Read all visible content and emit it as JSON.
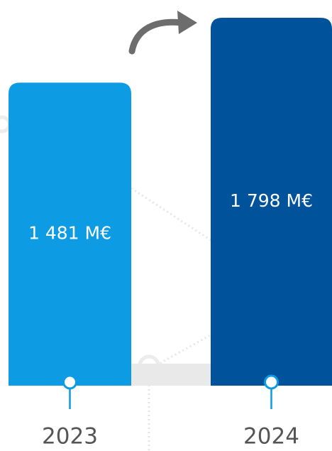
{
  "chart_data": {
    "type": "bar",
    "categories": [
      "2023",
      "2024"
    ],
    "values": [
      1481,
      1798
    ],
    "value_labels": [
      "1 481 M€",
      "1 798 M€"
    ],
    "colors": [
      "#0d9be3",
      "#00529b"
    ]
  }
}
